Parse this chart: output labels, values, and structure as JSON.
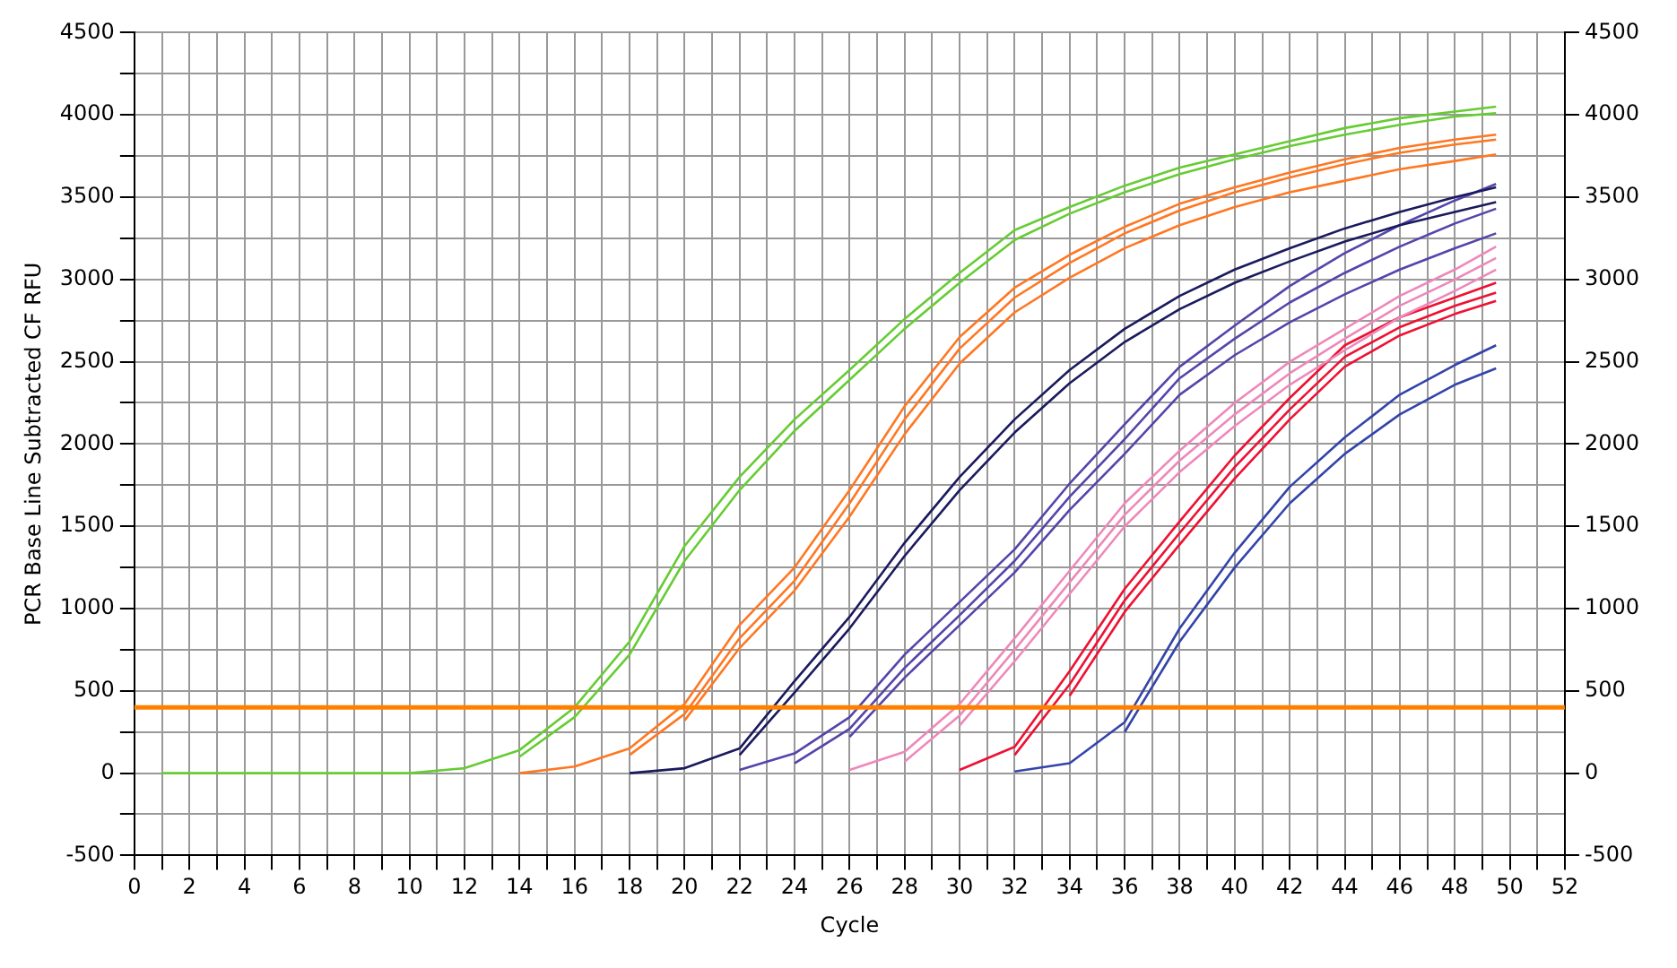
{
  "chart_data": {
    "type": "line",
    "xlabel": "Cycle",
    "ylabel": "PCR Base Line Subtracted CF RFU",
    "grid": true,
    "marker": "none",
    "line_style": "solid",
    "x": [
      1,
      4,
      8,
      10,
      12,
      14,
      16,
      18,
      20,
      22,
      24,
      26,
      28,
      30,
      32,
      34,
      36,
      38,
      40,
      42,
      44,
      46,
      48,
      49.5
    ],
    "xlim": [
      0,
      52
    ],
    "xticks": [
      0,
      {
        "value": 1,
        "label": null
      },
      2,
      {
        "value": 3,
        "label": null
      },
      4,
      {
        "value": 5,
        "label": null
      },
      6,
      {
        "value": 7,
        "label": null
      },
      8,
      {
        "value": 9,
        "label": null
      },
      10,
      {
        "value": 11,
        "label": null
      },
      12,
      {
        "value": 13,
        "label": null
      },
      14,
      {
        "value": 15,
        "label": null
      },
      16,
      {
        "value": 17,
        "label": null
      },
      18,
      {
        "value": 19,
        "label": null
      },
      20,
      {
        "value": 21,
        "label": null
      },
      22,
      {
        "value": 23,
        "label": null
      },
      24,
      {
        "value": 25,
        "label": null
      },
      26,
      {
        "value": 27,
        "label": null
      },
      28,
      {
        "value": 29,
        "label": null
      },
      30,
      {
        "value": 31,
        "label": null
      },
      32,
      {
        "value": 33,
        "label": null
      },
      34,
      {
        "value": 35,
        "label": null
      },
      36,
      {
        "value": 37,
        "label": null
      },
      38,
      {
        "value": 39,
        "label": null
      },
      40,
      {
        "value": 41,
        "label": null
      },
      42,
      {
        "value": 43,
        "label": null
      },
      44,
      {
        "value": 45,
        "label": null
      },
      46,
      {
        "value": 47,
        "label": null
      },
      48,
      {
        "value": 49,
        "label": null
      },
      50,
      {
        "value": 51,
        "label": null
      },
      52
    ],
    "ylim": [
      -500,
      4500
    ],
    "yticks": [
      -500,
      {
        "value": -250,
        "label": null
      },
      0,
      {
        "value": 250,
        "label": null
      },
      500,
      {
        "value": 750,
        "label": null
      },
      1000,
      {
        "value": 1250,
        "label": null
      },
      1500,
      {
        "value": 1750,
        "label": null
      },
      2000,
      {
        "value": 2250,
        "label": null
      },
      2500,
      {
        "value": 2750,
        "label": null
      },
      3000,
      {
        "value": 3250,
        "label": null
      },
      3500,
      {
        "value": 3750,
        "label": null
      },
      4000,
      {
        "value": 4250,
        "label": null
      },
      4500
    ],
    "y2lim": [
      -500,
      4500
    ],
    "y2ticks": [
      -500,
      0,
      500,
      1000,
      1500,
      2000,
      2500,
      3000,
      3500,
      4000,
      4500
    ],
    "ref_lines": [
      {
        "axis": "y",
        "value": 400,
        "color": "#ff8000"
      }
    ],
    "series": [
      {
        "color": "#66cc33",
        "values": [
          0,
          0,
          0,
          0,
          30,
          140,
          400,
          800,
          1380,
          1800,
          2150,
          2450,
          2760,
          3040,
          3300,
          3440,
          3570,
          3680,
          3760,
          3840,
          3920,
          3980,
          4020,
          4050
        ]
      },
      {
        "color": "#66cc33",
        "values": [
          null,
          null,
          null,
          null,
          null,
          100,
          340,
          720,
          1290,
          1720,
          2080,
          2390,
          2700,
          2980,
          3240,
          3400,
          3530,
          3640,
          3730,
          3810,
          3880,
          3940,
          3990,
          4010
        ]
      },
      {
        "color": "#ff7722",
        "values": [
          null,
          null,
          null,
          null,
          null,
          0,
          40,
          150,
          420,
          900,
          1250,
          1720,
          2230,
          2650,
          2950,
          3150,
          3320,
          3460,
          3560,
          3650,
          3730,
          3800,
          3850,
          3880
        ]
      },
      {
        "color": "#ff7722",
        "values": [
          null,
          null,
          null,
          null,
          null,
          null,
          null,
          110,
          360,
          820,
          1170,
          1640,
          2150,
          2580,
          2890,
          3100,
          3280,
          3420,
          3530,
          3620,
          3700,
          3770,
          3820,
          3850
        ]
      },
      {
        "color": "#ff7722",
        "values": [
          null,
          null,
          null,
          null,
          null,
          null,
          null,
          null,
          320,
          760,
          1110,
          1560,
          2060,
          2490,
          2800,
          3010,
          3190,
          3330,
          3440,
          3530,
          3600,
          3670,
          3720,
          3760
        ]
      },
      {
        "color": "#1a1a5e",
        "values": [
          null,
          null,
          null,
          null,
          null,
          null,
          null,
          0,
          30,
          150,
          560,
          950,
          1400,
          1800,
          2150,
          2450,
          2700,
          2900,
          3060,
          3190,
          3310,
          3410,
          3500,
          3560
        ]
      },
      {
        "color": "#1a1a5e",
        "values": [
          null,
          null,
          null,
          null,
          null,
          null,
          null,
          null,
          null,
          110,
          490,
          880,
          1320,
          1720,
          2070,
          2370,
          2620,
          2820,
          2980,
          3110,
          3230,
          3330,
          3410,
          3470
        ]
      },
      {
        "color": "#5544aa",
        "values": [
          null,
          null,
          null,
          null,
          null,
          null,
          null,
          null,
          null,
          20,
          120,
          340,
          720,
          1040,
          1360,
          1760,
          2120,
          2470,
          2720,
          2960,
          3160,
          3330,
          3480,
          3580
        ]
      },
      {
        "color": "#5544aa",
        "values": [
          null,
          null,
          null,
          null,
          null,
          null,
          null,
          null,
          null,
          null,
          60,
          270,
          640,
          960,
          1290,
          1680,
          2030,
          2400,
          2640,
          2860,
          3040,
          3200,
          3340,
          3430
        ]
      },
      {
        "color": "#5544aa",
        "values": [
          null,
          null,
          null,
          null,
          null,
          null,
          null,
          null,
          null,
          null,
          null,
          220,
          580,
          900,
          1220,
          1600,
          1940,
          2300,
          2540,
          2740,
          2910,
          3060,
          3190,
          3280
        ]
      },
      {
        "color": "#ee88bb",
        "values": [
          null,
          null,
          null,
          null,
          null,
          null,
          null,
          null,
          null,
          null,
          null,
          20,
          130,
          420,
          820,
          1230,
          1640,
          1960,
          2250,
          2500,
          2700,
          2900,
          3060,
          3200
        ]
      },
      {
        "color": "#ee88bb",
        "values": [
          null,
          null,
          null,
          null,
          null,
          null,
          null,
          null,
          null,
          null,
          null,
          null,
          70,
          350,
          750,
          1160,
          1570,
          1900,
          2180,
          2430,
          2640,
          2840,
          3000,
          3130
        ]
      },
      {
        "color": "#ee88bb",
        "values": [
          null,
          null,
          null,
          null,
          null,
          null,
          null,
          null,
          null,
          null,
          null,
          null,
          null,
          290,
          680,
          1090,
          1500,
          1830,
          2110,
          2360,
          2570,
          2770,
          2930,
          3060
        ]
      },
      {
        "color": "#ee1133",
        "values": [
          null,
          null,
          null,
          null,
          null,
          null,
          null,
          null,
          null,
          null,
          null,
          null,
          null,
          20,
          160,
          620,
          1120,
          1530,
          1930,
          2280,
          2600,
          2770,
          2890,
          2980
        ]
      },
      {
        "color": "#ee1133",
        "values": [
          null,
          null,
          null,
          null,
          null,
          null,
          null,
          null,
          null,
          null,
          null,
          null,
          null,
          null,
          110,
          540,
          1050,
          1460,
          1860,
          2210,
          2530,
          2710,
          2840,
          2920
        ]
      },
      {
        "color": "#ee1133",
        "values": [
          null,
          null,
          null,
          null,
          null,
          null,
          null,
          null,
          null,
          null,
          null,
          null,
          null,
          null,
          null,
          470,
          980,
          1390,
          1790,
          2150,
          2470,
          2660,
          2790,
          2870
        ]
      },
      {
        "color": "#3344aa",
        "values": [
          null,
          null,
          null,
          null,
          null,
          null,
          null,
          null,
          null,
          null,
          null,
          null,
          null,
          null,
          10,
          60,
          310,
          880,
          1340,
          1740,
          2040,
          2300,
          2480,
          2600
        ]
      },
      {
        "color": "#3344aa",
        "values": [
          null,
          null,
          null,
          null,
          null,
          null,
          null,
          null,
          null,
          null,
          null,
          null,
          null,
          null,
          null,
          null,
          250,
          800,
          1250,
          1640,
          1940,
          2180,
          2360,
          2460
        ]
      }
    ]
  }
}
